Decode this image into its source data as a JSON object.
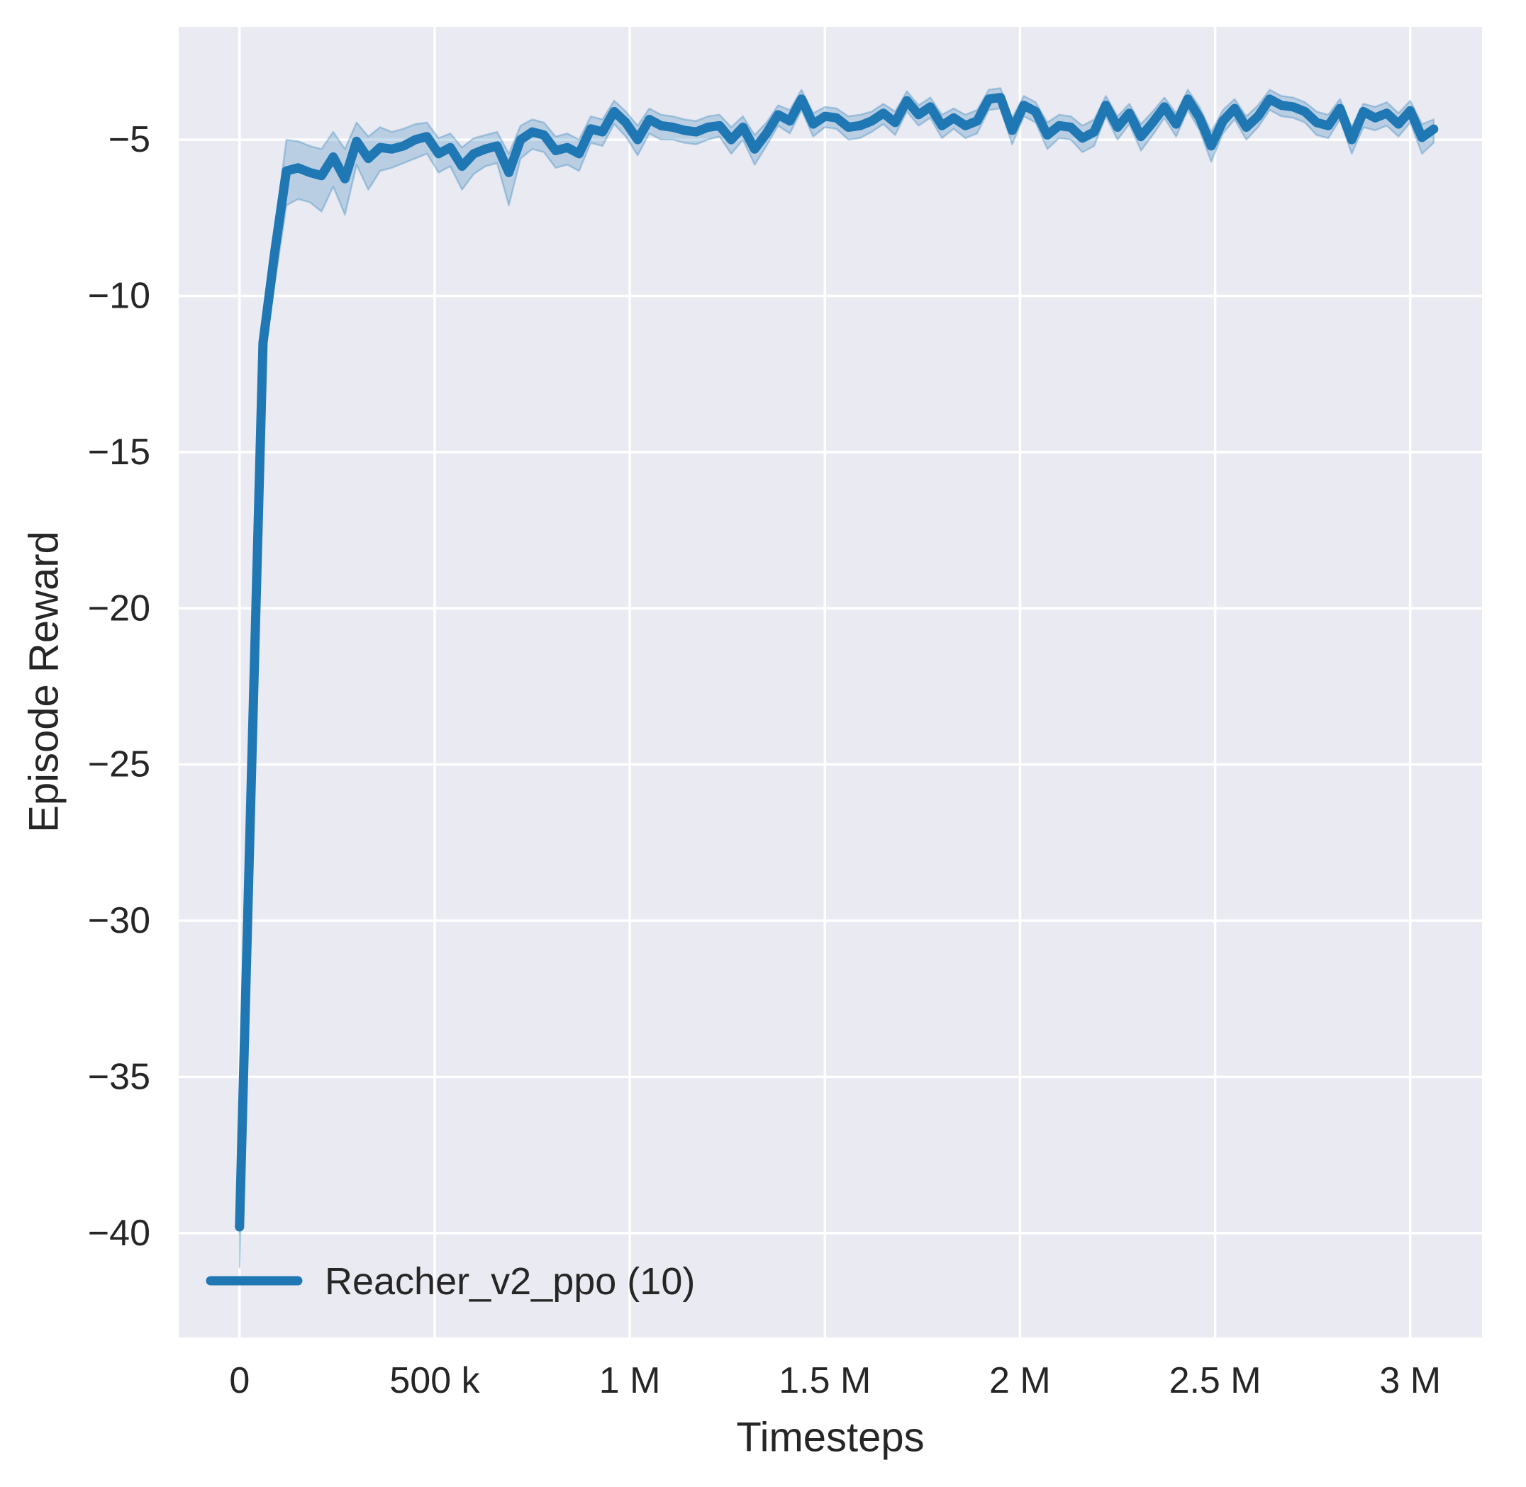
{
  "figure": {
    "background_color": "#ffffff",
    "plot_background_color": "#eaeaf2",
    "grid_color": "#ffffff",
    "text_color": "#262626"
  },
  "chart_data": {
    "type": "line",
    "title": "",
    "xlabel": "Timesteps",
    "ylabel": "Episode Reward",
    "xlim": [
      -156000,
      3184000
    ],
    "ylim": [
      -43.34,
      -1.39
    ],
    "grid": true,
    "legend_position": "lower left",
    "x_ticks": [
      {
        "value": 0,
        "label": "0"
      },
      {
        "value": 500000,
        "label": "500 k"
      },
      {
        "value": 1000000,
        "label": "1 M"
      },
      {
        "value": 1500000,
        "label": "1.5 M"
      },
      {
        "value": 2000000,
        "label": "2 M"
      },
      {
        "value": 2500000,
        "label": "2.5 M"
      },
      {
        "value": 3000000,
        "label": "3 M"
      }
    ],
    "y_ticks": [
      {
        "value": -5,
        "label": "−5"
      },
      {
        "value": -10,
        "label": "−10"
      },
      {
        "value": -15,
        "label": "−15"
      },
      {
        "value": -20,
        "label": "−20"
      },
      {
        "value": -25,
        "label": "−25"
      },
      {
        "value": -30,
        "label": "−30"
      },
      {
        "value": -35,
        "label": "−35"
      },
      {
        "value": -40,
        "label": "−40"
      }
    ],
    "series": [
      {
        "label": "Reacher_v2_ppo (10)",
        "color": "#1f77b4",
        "band_fill_alpha": 0.24,
        "band_edge_alpha": 0.3,
        "x_unit": 1000,
        "x_k": [
          0,
          30,
          60,
          90,
          120,
          150,
          180,
          210,
          240,
          270,
          300,
          330,
          360,
          390,
          420,
          450,
          480,
          510,
          540,
          570,
          600,
          630,
          660,
          690,
          720,
          750,
          780,
          810,
          840,
          870,
          900,
          930,
          960,
          990,
          1020,
          1050,
          1080,
          1110,
          1140,
          1170,
          1200,
          1230,
          1260,
          1290,
          1320,
          1350,
          1380,
          1410,
          1440,
          1470,
          1500,
          1530,
          1560,
          1590,
          1620,
          1650,
          1680,
          1710,
          1740,
          1770,
          1800,
          1830,
          1860,
          1890,
          1920,
          1950,
          1980,
          2010,
          2040,
          2070,
          2100,
          2130,
          2160,
          2190,
          2220,
          2250,
          2280,
          2310,
          2340,
          2370,
          2400,
          2430,
          2460,
          2490,
          2520,
          2550,
          2580,
          2610,
          2640,
          2670,
          2700,
          2730,
          2760,
          2790,
          2820,
          2850,
          2880,
          2910,
          2940,
          2970,
          3000,
          3030,
          3060
        ],
        "y": [
          -39.8,
          -25.5,
          -11.5,
          -8.6,
          -6.0,
          -5.9,
          -6.05,
          -6.15,
          -5.55,
          -6.25,
          -5.05,
          -5.6,
          -5.25,
          -5.3,
          -5.2,
          -5.0,
          -4.9,
          -5.45,
          -5.25,
          -5.85,
          -5.45,
          -5.3,
          -5.2,
          -6.05,
          -5.0,
          -4.75,
          -4.85,
          -5.35,
          -5.25,
          -5.45,
          -4.65,
          -4.75,
          -4.1,
          -4.45,
          -5.0,
          -4.35,
          -4.55,
          -4.6,
          -4.7,
          -4.75,
          -4.6,
          -4.55,
          -5.0,
          -4.6,
          -5.3,
          -4.8,
          -4.2,
          -4.4,
          -3.7,
          -4.5,
          -4.25,
          -4.3,
          -4.6,
          -4.55,
          -4.4,
          -4.15,
          -4.45,
          -3.75,
          -4.2,
          -3.95,
          -4.55,
          -4.3,
          -4.55,
          -4.4,
          -3.7,
          -3.65,
          -4.7,
          -3.9,
          -4.1,
          -4.85,
          -4.55,
          -4.6,
          -4.95,
          -4.75,
          -3.9,
          -4.6,
          -4.15,
          -4.9,
          -4.45,
          -3.95,
          -4.5,
          -3.7,
          -4.3,
          -5.2,
          -4.4,
          -4.0,
          -4.6,
          -4.25,
          -3.7,
          -3.9,
          -3.95,
          -4.1,
          -4.45,
          -4.55,
          -4.0,
          -5.0,
          -4.1,
          -4.3,
          -4.15,
          -4.5,
          -4.07,
          -4.93,
          -4.66
        ],
        "y_hi": [
          -38.8,
          -25.0,
          -11.0,
          -7.9,
          -5.0,
          -5.05,
          -5.2,
          -5.3,
          -4.75,
          -5.3,
          -4.45,
          -4.9,
          -4.6,
          -4.75,
          -4.65,
          -4.5,
          -4.45,
          -4.95,
          -4.8,
          -5.25,
          -4.95,
          -4.85,
          -4.75,
          -5.45,
          -4.55,
          -4.35,
          -4.45,
          -4.9,
          -4.8,
          -5.0,
          -4.25,
          -4.35,
          -3.75,
          -4.1,
          -4.55,
          -4.0,
          -4.2,
          -4.25,
          -4.35,
          -4.4,
          -4.25,
          -4.2,
          -4.6,
          -4.25,
          -4.85,
          -4.45,
          -3.9,
          -4.05,
          -3.4,
          -4.15,
          -3.95,
          -4.0,
          -4.25,
          -4.2,
          -4.1,
          -3.85,
          -4.1,
          -3.45,
          -3.9,
          -3.65,
          -4.2,
          -4.0,
          -4.2,
          -4.05,
          -3.4,
          -3.35,
          -4.3,
          -3.6,
          -3.8,
          -4.45,
          -4.2,
          -4.25,
          -4.55,
          -4.35,
          -3.6,
          -4.25,
          -3.85,
          -4.5,
          -4.1,
          -3.65,
          -4.15,
          -3.4,
          -3.95,
          -4.75,
          -4.05,
          -3.7,
          -4.25,
          -3.9,
          -3.4,
          -3.6,
          -3.65,
          -3.8,
          -4.1,
          -4.2,
          -3.7,
          -4.6,
          -3.85,
          -3.95,
          -3.8,
          -4.15,
          -3.75,
          -4.5,
          -4.35
        ],
        "y_lo": [
          -41.1,
          -26.2,
          -12.3,
          -9.6,
          -7.1,
          -6.9,
          -7.0,
          -7.3,
          -6.5,
          -7.4,
          -5.8,
          -6.6,
          -6.0,
          -5.9,
          -5.75,
          -5.6,
          -5.45,
          -6.05,
          -5.85,
          -6.6,
          -6.1,
          -5.85,
          -5.75,
          -7.1,
          -5.6,
          -5.3,
          -5.4,
          -5.9,
          -5.8,
          -6.0,
          -5.1,
          -5.2,
          -4.5,
          -4.9,
          -5.5,
          -4.8,
          -5.0,
          -5.0,
          -5.1,
          -5.15,
          -5.0,
          -4.9,
          -5.45,
          -5.0,
          -5.8,
          -5.2,
          -4.55,
          -4.8,
          -4.05,
          -4.9,
          -4.6,
          -4.65,
          -5.0,
          -4.95,
          -4.75,
          -4.5,
          -4.85,
          -4.1,
          -4.55,
          -4.3,
          -4.95,
          -4.65,
          -4.95,
          -4.8,
          -4.05,
          -4.0,
          -5.15,
          -4.25,
          -4.45,
          -5.3,
          -4.95,
          -5.0,
          -5.4,
          -5.2,
          -4.25,
          -5.0,
          -4.5,
          -5.35,
          -4.85,
          -4.3,
          -4.9,
          -4.05,
          -4.7,
          -5.7,
          -4.8,
          -4.35,
          -5.0,
          -4.6,
          -4.05,
          -4.25,
          -4.3,
          -4.45,
          -4.85,
          -4.95,
          -4.35,
          -5.45,
          -4.6,
          -4.7,
          -4.55,
          -4.9,
          -4.45,
          -5.45,
          -5.1
        ]
      }
    ]
  }
}
